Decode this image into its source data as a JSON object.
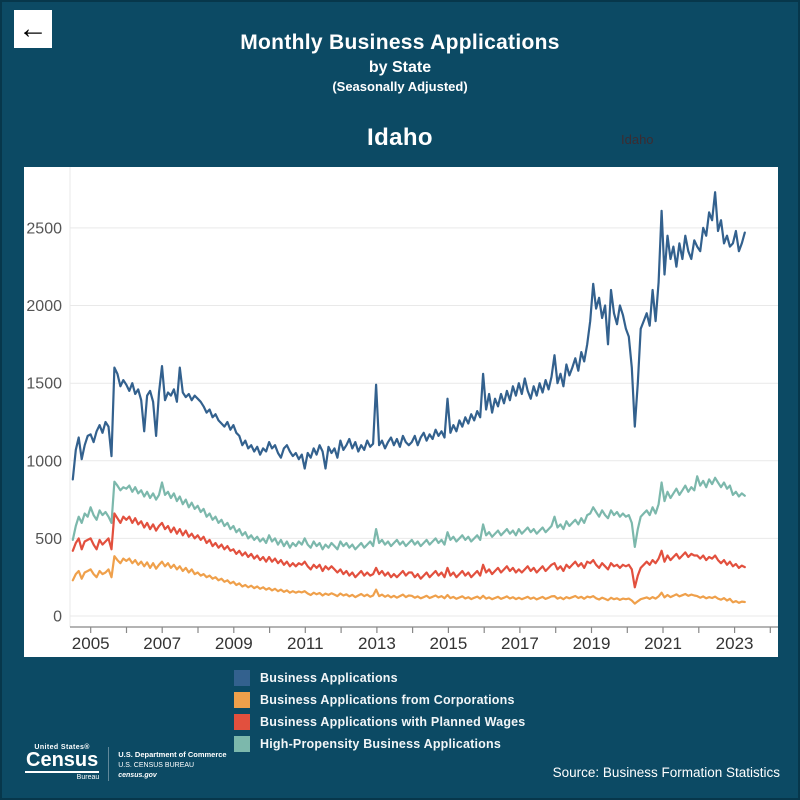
{
  "header": {
    "back_label": "←",
    "title": "Monthly Business Applications",
    "subtitle": "by State",
    "note": "(Seasonally Adjusted)",
    "state_title": "Idaho",
    "state_selector_value": "Idaho"
  },
  "footer": {
    "logo_top": "United States®",
    "logo_main": "Census",
    "logo_sub": "Bureau",
    "dept_line1": "U.S. Department of Commerce",
    "dept_line2": "U.S. CENSUS BUREAU",
    "dept_line3": "census.gov",
    "source": "Source: Business Formation Statistics"
  },
  "colors": {
    "background": "#0c4a64",
    "card": "#ffffff",
    "gridline": "#e9e9e9",
    "axis_line": "#888888",
    "y_tick_text": "#555555",
    "x_tick_text": "#333333",
    "legend_text": "#f2f6f8"
  },
  "chart_data": {
    "type": "line",
    "title": "Idaho",
    "xlabel": "",
    "ylabel": "",
    "x_start_year": 2004.5,
    "x_step": "1 month",
    "x_end_year": 2023.33,
    "ylim": [
      0,
      2900
    ],
    "yticks": [
      0,
      500,
      1000,
      1500,
      2000,
      2500
    ],
    "xticks_labeled": [
      2005,
      2007,
      2009,
      2011,
      2013,
      2015,
      2017,
      2019,
      2021,
      2023
    ],
    "xtick_range": [
      2005,
      2024
    ],
    "grid": "horizontal",
    "legend_position": "below-left",
    "draw_order": [
      0,
      3,
      2,
      1
    ],
    "series": [
      {
        "name": "Business Applications",
        "color": "#33618e",
        "values": [
          880,
          1070,
          1150,
          1010,
          1100,
          1160,
          1170,
          1120,
          1190,
          1230,
          1180,
          1250,
          1220,
          1030,
          1600,
          1560,
          1480,
          1520,
          1490,
          1450,
          1500,
          1430,
          1460,
          1390,
          1190,
          1420,
          1450,
          1380,
          1160,
          1440,
          1610,
          1390,
          1440,
          1420,
          1460,
          1380,
          1600,
          1440,
          1410,
          1430,
          1390,
          1420,
          1400,
          1380,
          1350,
          1310,
          1330,
          1280,
          1300,
          1260,
          1240,
          1220,
          1250,
          1200,
          1230,
          1180,
          1160,
          1100,
          1130,
          1080,
          1100,
          1060,
          1090,
          1040,
          1080,
          1060,
          1120,
          1080,
          1100,
          1050,
          1020,
          1080,
          1100,
          1060,
          1030,
          1050,
          1010,
          1040,
          950,
          1050,
          1020,
          1080,
          1040,
          1100,
          1060,
          950,
          1090,
          1050,
          1080,
          1020,
          1130,
          1070,
          1100,
          1140,
          1080,
          1120,
          1060,
          1100,
          1070,
          1130,
          1090,
          1110,
          1490,
          1100,
          1130,
          1080,
          1120,
          1150,
          1100,
          1140,
          1090,
          1160,
          1120,
          1100,
          1120,
          1160,
          1100,
          1150,
          1180,
          1130,
          1170,
          1140,
          1200,
          1160,
          1190,
          1150,
          1400,
          1180,
          1230,
          1190,
          1260,
          1220,
          1280,
          1240,
          1300,
          1260,
          1320,
          1280,
          1560,
          1330,
          1430,
          1310,
          1400,
          1350,
          1430,
          1370,
          1450,
          1390,
          1480,
          1420,
          1500,
          1430,
          1530,
          1450,
          1400,
          1480,
          1420,
          1500,
          1440,
          1520,
          1460,
          1540,
          1680,
          1500,
          1560,
          1480,
          1620,
          1550,
          1600,
          1660,
          1580,
          1700,
          1640,
          1750,
          1900,
          2140,
          1980,
          2050,
          1920,
          2000,
          1750,
          2100,
          1950,
          1880,
          2000,
          1940,
          1850,
          1800,
          1600,
          1220,
          1500,
          1850,
          1900,
          1950,
          1870,
          2100,
          1900,
          2150,
          2610,
          2200,
          2450,
          2300,
          2380,
          2250,
          2400,
          2300,
          2450,
          2350,
          2300,
          2420,
          2380,
          2350,
          2500,
          2450,
          2600,
          2550,
          2730,
          2480,
          2550,
          2400,
          2450,
          2380,
          2400,
          2480,
          2350,
          2400,
          2470
        ]
      },
      {
        "name": "Business Applications from Corporations",
        "color": "#efa04b",
        "values": [
          230,
          270,
          290,
          240,
          280,
          290,
          300,
          270,
          250,
          290,
          270,
          280,
          300,
          250,
          385,
          360,
          340,
          370,
          355,
          370,
          340,
          360,
          330,
          350,
          320,
          345,
          310,
          340,
          305,
          330,
          350,
          320,
          340,
          310,
          330,
          300,
          320,
          290,
          310,
          280,
          300,
          270,
          280,
          260,
          270,
          250,
          260,
          240,
          250,
          230,
          240,
          220,
          230,
          210,
          220,
          200,
          210,
          190,
          200,
          185,
          195,
          180,
          190,
          175,
          185,
          170,
          180,
          165,
          175,
          160,
          170,
          155,
          165,
          150,
          160,
          150,
          158,
          152,
          160,
          145,
          135,
          150,
          140,
          148,
          132,
          144,
          136,
          146,
          138,
          128,
          145,
          132,
          140,
          126,
          136,
          122,
          132,
          142,
          128,
          138,
          124,
          132,
          170,
          128,
          138,
          124,
          134,
          120,
          130,
          118,
          128,
          138,
          122,
          132,
          130,
          118,
          126,
          114,
          122,
          130,
          116,
          124,
          132,
          120,
          128,
          114,
          135,
          115,
          123,
          111,
          119,
          127,
          113,
          121,
          109,
          117,
          125,
          112,
          130,
          112,
          120,
          108,
          116,
          124,
          110,
          118,
          126,
          113,
          121,
          109,
          118,
          108,
          116,
          124,
          111,
          119,
          107,
          115,
          123,
          110,
          118,
          126,
          128,
          112,
          120,
          108,
          122,
          114,
          121,
          129,
          116,
          124,
          111,
          125,
          120,
          128,
          114,
          106,
          118,
          110,
          102,
          117,
          108,
          114,
          104,
          112,
          108,
          112,
          100,
          80,
          95,
          108,
          114,
          120,
          110,
          122,
          112,
          126,
          150,
          120,
          135,
          122,
          130,
          140,
          126,
          134,
          142,
          130,
          138,
          132,
          128,
          118,
          126,
          114,
          122,
          116,
          125,
          112,
          105,
          115,
          100,
          110,
          88,
          96,
          85,
          93,
          90
        ]
      },
      {
        "name": "Business Applications with Planned Wages",
        "color": "#e2503e",
        "values": [
          420,
          470,
          500,
          430,
          480,
          490,
          500,
          460,
          430,
          490,
          460,
          480,
          500,
          430,
          660,
          630,
          600,
          640,
          620,
          640,
          600,
          630,
          590,
          610,
          570,
          600,
          560,
          590,
          550,
          580,
          600,
          560,
          580,
          540,
          570,
          530,
          560,
          520,
          550,
          510,
          530,
          500,
          520,
          490,
          510,
          470,
          490,
          450,
          470,
          440,
          460,
          430,
          450,
          420,
          430,
          400,
          420,
          390,
          410,
          380,
          400,
          370,
          390,
          360,
          380,
          350,
          380,
          350,
          370,
          340,
          360,
          330,
          350,
          320,
          340,
          320,
          340,
          330,
          350,
          320,
          300,
          330,
          310,
          330,
          290,
          320,
          300,
          320,
          300,
          280,
          300,
          270,
          290,
          260,
          280,
          250,
          270,
          290,
          260,
          280,
          260,
          270,
          310,
          270,
          290,
          260,
          280,
          250,
          270,
          250,
          270,
          290,
          260,
          280,
          280,
          250,
          270,
          240,
          260,
          280,
          250,
          270,
          290,
          260,
          280,
          250,
          310,
          260,
          280,
          250,
          270,
          290,
          260,
          280,
          250,
          270,
          290,
          260,
          330,
          280,
          300,
          270,
          290,
          310,
          280,
          300,
          320,
          290,
          310,
          280,
          300,
          280,
          300,
          320,
          290,
          310,
          280,
          300,
          320,
          290,
          310,
          330,
          340,
          300,
          320,
          290,
          330,
          310,
          330,
          350,
          320,
          340,
          310,
          350,
          340,
          360,
          330,
          310,
          340,
          320,
          300,
          340,
          320,
          330,
          310,
          330,
          320,
          330,
          300,
          185,
          260,
          310,
          330,
          350,
          330,
          360,
          340,
          370,
          420,
          350,
          390,
          360,
          380,
          400,
          370,
          390,
          410,
          380,
          400,
          390,
          390,
          370,
          390,
          360,
          380,
          370,
          390,
          360,
          340,
          360,
          330,
          350,
          320,
          335,
          310,
          325,
          315
        ]
      },
      {
        "name": "High-Propensity Business Applications",
        "color": "#7cb8ac",
        "values": [
          490,
          580,
          640,
          600,
          660,
          640,
          700,
          650,
          620,
          680,
          650,
          670,
          640,
          600,
          865,
          840,
          810,
          830,
          820,
          840,
          800,
          830,
          790,
          810,
          770,
          800,
          760,
          790,
          750,
          780,
          860,
          780,
          800,
          760,
          790,
          740,
          770,
          720,
          750,
          700,
          730,
          690,
          710,
          670,
          690,
          640,
          660,
          620,
          640,
          600,
          620,
          580,
          600,
          560,
          580,
          540,
          560,
          520,
          540,
          500,
          520,
          490,
          510,
          480,
          500,
          470,
          520,
          480,
          500,
          460,
          490,
          450,
          480,
          440,
          470,
          450,
          480,
          460,
          500,
          460,
          440,
          480,
          450,
          470,
          430,
          460,
          440,
          470,
          450,
          430,
          480,
          450,
          470,
          440,
          460,
          430,
          450,
          470,
          440,
          460,
          480,
          450,
          560,
          470,
          490,
          460,
          480,
          450,
          470,
          490,
          460,
          480,
          450,
          470,
          490,
          460,
          480,
          450,
          470,
          490,
          460,
          480,
          500,
          470,
          490,
          460,
          540,
          490,
          510,
          480,
          500,
          520,
          490,
          510,
          480,
          500,
          520,
          490,
          590,
          520,
          540,
          510,
          530,
          550,
          520,
          540,
          560,
          530,
          550,
          520,
          560,
          530,
          550,
          570,
          540,
          560,
          530,
          550,
          570,
          540,
          560,
          580,
          640,
          570,
          590,
          560,
          610,
          580,
          600,
          620,
          590,
          630,
          600,
          650,
          660,
          700,
          670,
          640,
          680,
          650,
          630,
          680,
          650,
          670,
          640,
          660,
          640,
          650,
          600,
          445,
          560,
          640,
          660,
          680,
          650,
          700,
          660,
          720,
          860,
          740,
          800,
          760,
          790,
          820,
          780,
          810,
          840,
          800,
          830,
          810,
          900,
          840,
          870,
          830,
          880,
          850,
          890,
          860,
          830,
          860,
          820,
          840,
          780,
          800,
          770,
          790,
          775
        ]
      }
    ]
  }
}
